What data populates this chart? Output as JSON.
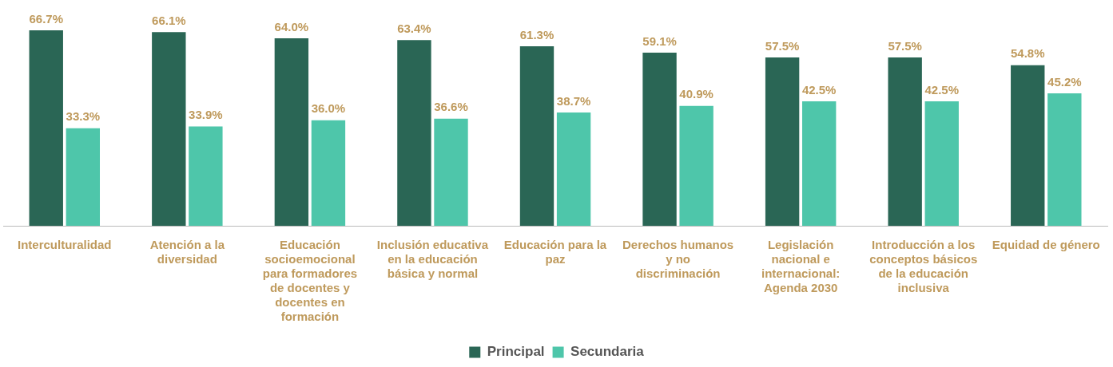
{
  "chart_data": {
    "type": "bar",
    "categories": [
      "Interculturalidad",
      "Atención a la diversidad",
      "Educación socioemocional para formadores de docentes y docentes en formación",
      "Inclusión educativa en la educación básica y normal",
      "Educación para la paz",
      "Derechos humanos y no discriminación",
      "Legislación nacional e internacional: Agenda 2030",
      "Introducción a los conceptos básicos de la educación inclusiva",
      "Equidad de género"
    ],
    "series": [
      {
        "name": "Principal",
        "color": "#2a6655",
        "values": [
          66.7,
          66.1,
          64.0,
          63.4,
          61.3,
          59.1,
          57.5,
          57.5,
          54.8
        ],
        "value_labels": [
          "66.7%",
          "66.1%",
          "64.0%",
          "63.4%",
          "61.3%",
          "59.1%",
          "57.5%",
          "57.5%",
          "54.8%"
        ]
      },
      {
        "name": "Secundaria",
        "color": "#4ec6aa",
        "values": [
          33.3,
          33.9,
          36.0,
          36.6,
          38.7,
          40.9,
          42.5,
          42.5,
          45.2
        ],
        "value_labels": [
          "33.3%",
          "33.9%",
          "36.0%",
          "36.6%",
          "38.7%",
          "40.9%",
          "42.5%",
          "42.5%",
          "45.2%"
        ]
      }
    ],
    "tick_labels": "x",
    "legend": "bottom",
    "grid": false
  }
}
